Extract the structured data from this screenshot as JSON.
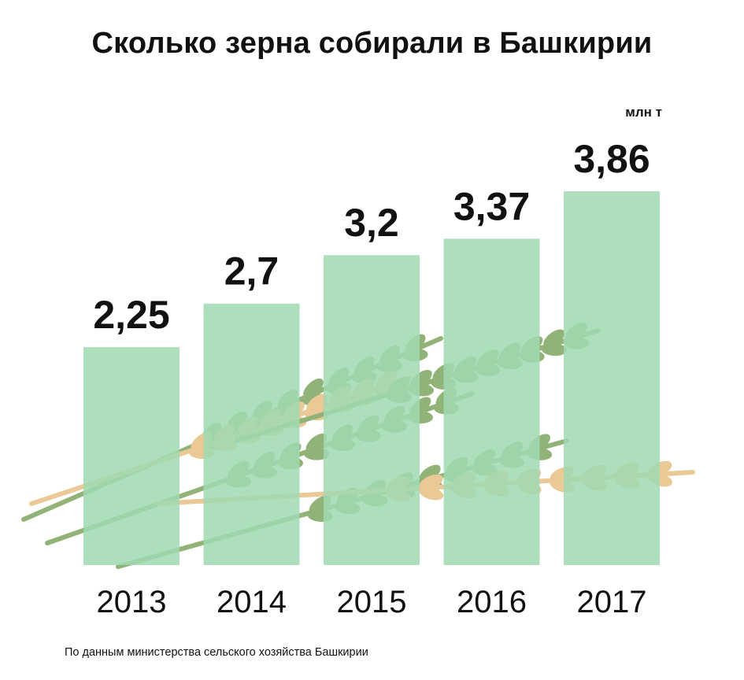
{
  "title": "Сколько зерна собирали в Башкирии",
  "unit": "млн т",
  "source": "По данным министерства сельского хозяйства Башкирии",
  "colors": {
    "bar": "#9fd9b2",
    "text": "#111111",
    "wheat_green": "#6e9a4c",
    "wheat_gold": "#e5b874"
  },
  "chart_data": {
    "type": "bar",
    "title": "Сколько зерна собирали в Башкирии",
    "ylabel": "млн т",
    "categories": [
      "2013",
      "2014",
      "2015",
      "2016",
      "2017"
    ],
    "values": [
      2.25,
      2.7,
      3.2,
      3.37,
      3.86
    ],
    "value_labels": [
      "2,25",
      "2,7",
      "3,2",
      "3,37",
      "3,86"
    ],
    "ylim": [
      0,
      3.86
    ],
    "grid": false,
    "legend": "none"
  }
}
